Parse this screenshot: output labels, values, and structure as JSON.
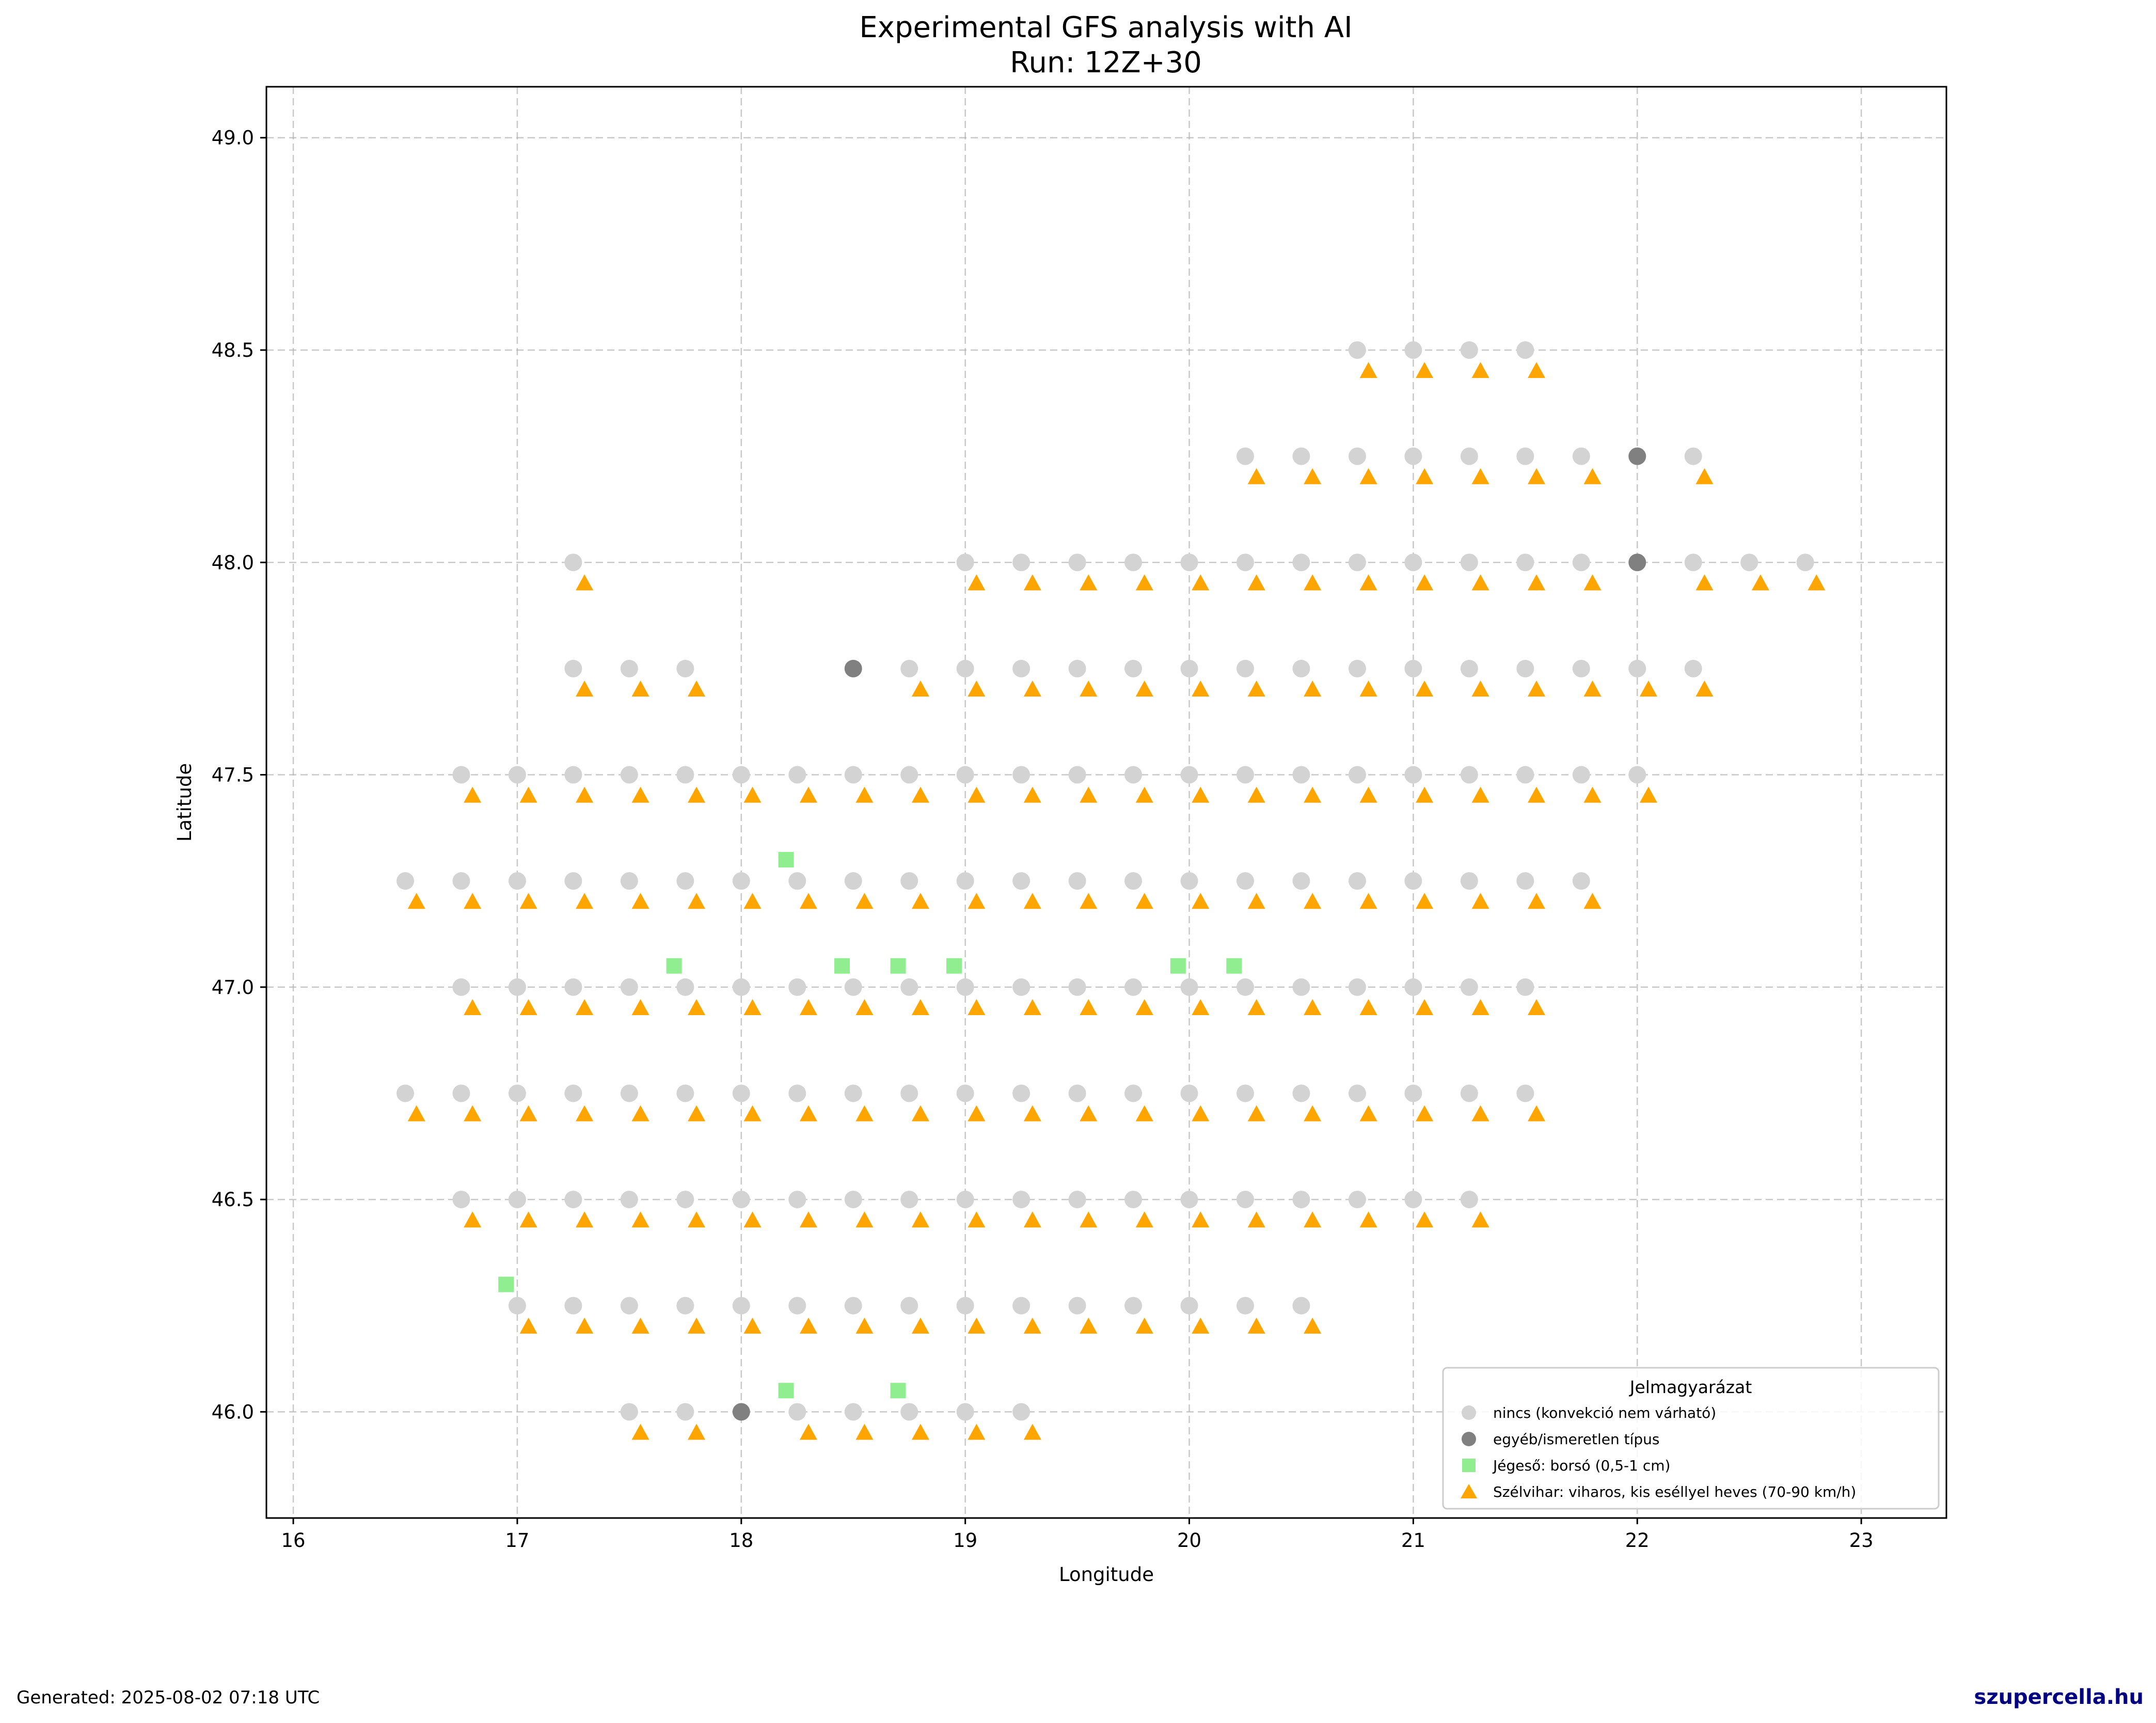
{
  "footer": {
    "generated": "Generated: 2025-08-02 07:18 UTC",
    "site": "szupercella.hu"
  },
  "chart_data": {
    "type": "scatter",
    "title": "Experimental GFS analysis with AI",
    "subtitle": "Run: 12Z+30",
    "xlabel": "Longitude",
    "ylabel": "Latitude",
    "xlim": [
      15.88,
      23.38
    ],
    "ylim": [
      45.75,
      49.12
    ],
    "xticks": [
      "16",
      "17",
      "18",
      "19",
      "20",
      "21",
      "22",
      "23"
    ],
    "yticks": [
      "46.0",
      "46.5",
      "47.0",
      "47.5",
      "48.0",
      "48.5",
      "49.0"
    ],
    "grid": true,
    "legend": {
      "title": "Jelmagyarázat",
      "placement": "bottom-right"
    },
    "series": [
      {
        "name": "nincs (konvekció nem várható)",
        "marker": "circle",
        "color": "#d3d3d3",
        "rows": [
          {
            "y": 48.5,
            "x": [
              20.75,
              21.0,
              21.25,
              21.5
            ]
          },
          {
            "y": 48.25,
            "x": [
              20.25,
              20.5,
              20.75,
              21.0,
              21.25,
              21.5,
              21.75,
              22.25
            ]
          },
          {
            "y": 48.0,
            "x": [
              17.25,
              19.0,
              19.25,
              19.5,
              19.75,
              20.0,
              20.25,
              20.5,
              20.75,
              21.0,
              21.25,
              21.5,
              21.75,
              22.25,
              22.5,
              22.75
            ]
          },
          {
            "y": 47.75,
            "x": [
              17.25,
              17.5,
              17.75,
              18.75,
              19.0,
              19.25,
              19.5,
              19.75,
              20.0,
              20.25,
              20.5,
              20.75,
              21.0,
              21.25,
              21.5,
              21.75,
              22.0,
              22.25
            ]
          },
          {
            "y": 47.5,
            "x": [
              16.75,
              17.0,
              17.25,
              17.5,
              17.75,
              18.0,
              18.25,
              18.5,
              18.75,
              19.0,
              19.25,
              19.5,
              19.75,
              20.0,
              20.25,
              20.5,
              20.75,
              21.0,
              21.25,
              21.5,
              21.75,
              22.0
            ]
          },
          {
            "y": 47.25,
            "x": [
              16.5,
              16.75,
              17.0,
              17.25,
              17.5,
              17.75,
              18.0,
              18.25,
              18.5,
              18.75,
              19.0,
              19.25,
              19.5,
              19.75,
              20.0,
              20.25,
              20.5,
              20.75,
              21.0,
              21.25,
              21.5,
              21.75
            ]
          },
          {
            "y": 47.0,
            "x": [
              16.75,
              17.0,
              17.25,
              17.5,
              17.75,
              18.0,
              18.25,
              18.5,
              18.75,
              19.0,
              19.25,
              19.5,
              19.75,
              20.0,
              20.25,
              20.5,
              20.75,
              21.0,
              21.25,
              21.5
            ]
          },
          {
            "y": 46.75,
            "x": [
              16.5,
              16.75,
              17.0,
              17.25,
              17.5,
              17.75,
              18.0,
              18.25,
              18.5,
              18.75,
              19.0,
              19.25,
              19.5,
              19.75,
              20.0,
              20.25,
              20.5,
              20.75,
              21.0,
              21.25,
              21.5
            ]
          },
          {
            "y": 46.5,
            "x": [
              16.75,
              17.0,
              17.25,
              17.5,
              17.75,
              18.0,
              18.25,
              18.5,
              18.75,
              19.0,
              19.25,
              19.5,
              19.75,
              20.0,
              20.25,
              20.5,
              20.75,
              21.0,
              21.25
            ]
          },
          {
            "y": 46.25,
            "x": [
              17.0,
              17.25,
              17.5,
              17.75,
              18.0,
              18.25,
              18.5,
              18.75,
              19.0,
              19.25,
              19.5,
              19.75,
              20.0,
              20.25,
              20.5
            ]
          },
          {
            "y": 46.0,
            "x": [
              17.5,
              17.75,
              18.25,
              18.5,
              18.75,
              19.0,
              19.25
            ]
          }
        ]
      },
      {
        "name": "egyéb/ismeretlen típus",
        "marker": "circle",
        "color": "#808080",
        "points": [
          [
            22.0,
            48.25
          ],
          [
            22.0,
            48.0
          ],
          [
            18.5,
            47.75
          ],
          [
            18.0,
            46.0
          ]
        ]
      },
      {
        "name": "Jégeső: borsó (0,5-1 cm)",
        "marker": "square",
        "color": "#90ee90",
        "points": [
          [
            18.2,
            47.3
          ],
          [
            17.7,
            47.05
          ],
          [
            18.45,
            47.05
          ],
          [
            18.7,
            47.05
          ],
          [
            18.95,
            47.05
          ],
          [
            19.95,
            47.05
          ],
          [
            20.2,
            47.05
          ],
          [
            16.95,
            46.3
          ],
          [
            18.2,
            46.05
          ],
          [
            18.7,
            46.05
          ]
        ]
      },
      {
        "name": "Szélvihar: viharos, kis eséllyel heves (70-90 km/h)",
        "marker": "triangle",
        "color": "#ffa500",
        "rows": [
          {
            "y": 48.45,
            "x": [
              20.8,
              21.05,
              21.3,
              21.55
            ]
          },
          {
            "y": 48.2,
            "x": [
              20.3,
              20.55,
              20.8,
              21.05,
              21.3,
              21.55,
              21.8,
              22.3
            ]
          },
          {
            "y": 47.95,
            "x": [
              17.3,
              19.05,
              19.3,
              19.55,
              19.8,
              20.05,
              20.3,
              20.55,
              20.8,
              21.05,
              21.3,
              21.55,
              21.8,
              22.3,
              22.55,
              22.8
            ]
          },
          {
            "y": 47.7,
            "x": [
              17.3,
              17.55,
              17.8,
              18.8,
              19.05,
              19.3,
              19.55,
              19.8,
              20.05,
              20.3,
              20.55,
              20.8,
              21.05,
              21.3,
              21.55,
              21.8,
              22.05,
              22.3
            ]
          },
          {
            "y": 47.45,
            "x": [
              16.8,
              17.05,
              17.3,
              17.55,
              17.8,
              18.05,
              18.3,
              18.55,
              18.8,
              19.05,
              19.3,
              19.55,
              19.8,
              20.05,
              20.3,
              20.55,
              20.8,
              21.05,
              21.3,
              21.55,
              21.8,
              22.05
            ]
          },
          {
            "y": 47.2,
            "x": [
              16.55,
              16.8,
              17.05,
              17.3,
              17.55,
              17.8,
              18.05,
              18.3,
              18.55,
              18.8,
              19.05,
              19.3,
              19.55,
              19.8,
              20.05,
              20.3,
              20.55,
              20.8,
              21.05,
              21.3,
              21.55,
              21.8
            ]
          },
          {
            "y": 46.95,
            "x": [
              16.8,
              17.05,
              17.3,
              17.55,
              17.8,
              18.05,
              18.3,
              18.55,
              18.8,
              19.05,
              19.3,
              19.55,
              19.8,
              20.05,
              20.3,
              20.55,
              20.8,
              21.05,
              21.3,
              21.55
            ]
          },
          {
            "y": 46.7,
            "x": [
              16.55,
              16.8,
              17.05,
              17.3,
              17.55,
              17.8,
              18.05,
              18.3,
              18.55,
              18.8,
              19.05,
              19.3,
              19.55,
              19.8,
              20.05,
              20.3,
              20.55,
              20.8,
              21.05,
              21.3,
              21.55
            ]
          },
          {
            "y": 46.45,
            "x": [
              16.8,
              17.05,
              17.3,
              17.55,
              17.8,
              18.05,
              18.3,
              18.55,
              18.8,
              19.05,
              19.3,
              19.55,
              19.8,
              20.05,
              20.3,
              20.55,
              20.8,
              21.05,
              21.3
            ]
          },
          {
            "y": 46.2,
            "x": [
              17.05,
              17.3,
              17.55,
              17.8,
              18.05,
              18.3,
              18.55,
              18.8,
              19.05,
              19.3,
              19.55,
              19.8,
              20.05,
              20.3,
              20.55
            ]
          },
          {
            "y": 45.95,
            "x": [
              17.55,
              17.8,
              18.3,
              18.55,
              18.8,
              19.05,
              19.3
            ]
          }
        ]
      }
    ]
  }
}
